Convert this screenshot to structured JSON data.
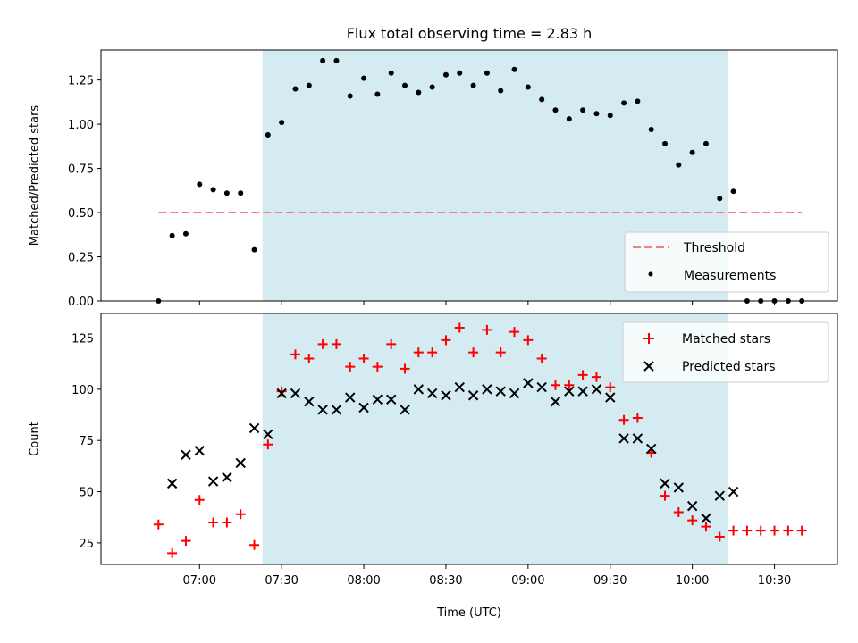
{
  "chart_data": [
    {
      "type": "scatter",
      "title": "Flux total observing time = 2.83 h",
      "ylabel": "Matched/Predicted stars",
      "xlabel": "",
      "ylim": [
        0,
        1.42
      ],
      "xlim": [
        "06:24",
        "10:53"
      ],
      "yticks": [
        0.0,
        0.25,
        0.5,
        0.75,
        1.0,
        1.25
      ],
      "ytick_labels": [
        "0.00",
        "0.25",
        "0.50",
        "0.75",
        "1.00",
        "1.25"
      ],
      "xtick_labels_shown": false,
      "shaded_interval": [
        "07:23",
        "10:13"
      ],
      "shade_color": "#d3ebf1",
      "threshold": {
        "name": "Threshold",
        "value": 0.5,
        "x_range": [
          "06:45",
          "10:40"
        ],
        "color": "#f4817f",
        "style": "dashed"
      },
      "legend_position": "lower-right",
      "series": [
        {
          "name": "Measurements",
          "marker": "dot",
          "color": "#000000",
          "x": [
            "06:45",
            "06:50",
            "06:55",
            "07:00",
            "07:05",
            "07:10",
            "07:15",
            "07:20",
            "07:25",
            "07:30",
            "07:35",
            "07:40",
            "07:45",
            "07:50",
            "07:55",
            "08:00",
            "08:05",
            "08:10",
            "08:15",
            "08:20",
            "08:25",
            "08:30",
            "08:35",
            "08:40",
            "08:45",
            "08:50",
            "08:55",
            "09:00",
            "09:05",
            "09:10",
            "09:15",
            "09:20",
            "09:25",
            "09:30",
            "09:35",
            "09:40",
            "09:45",
            "09:50",
            "09:55",
            "10:00",
            "10:05",
            "10:10",
            "10:15",
            "10:20",
            "10:25",
            "10:30",
            "10:35",
            "10:40"
          ],
          "y": [
            0.0,
            0.37,
            0.38,
            0.66,
            0.63,
            0.61,
            0.61,
            0.29,
            0.94,
            1.01,
            1.2,
            1.22,
            1.36,
            1.36,
            1.16,
            1.26,
            1.17,
            1.29,
            1.22,
            1.18,
            1.21,
            1.28,
            1.29,
            1.22,
            1.29,
            1.19,
            1.31,
            1.21,
            1.14,
            1.08,
            1.03,
            1.08,
            1.06,
            1.05,
            1.12,
            1.13,
            0.97,
            0.89,
            0.77,
            0.84,
            0.89,
            0.58,
            0.62,
            0.0,
            0.0,
            0.0,
            0.0,
            0.0
          ]
        }
      ]
    },
    {
      "type": "scatter",
      "title": "",
      "ylabel": "Count",
      "xlabel": "Time (UTC)",
      "ylim": [
        14.5,
        137
      ],
      "xlim": [
        "06:24",
        "10:53"
      ],
      "yticks": [
        25,
        50,
        75,
        100,
        125
      ],
      "ytick_labels": [
        "25",
        "50",
        "75",
        "100",
        "125"
      ],
      "xticks": [
        "07:00",
        "07:30",
        "08:00",
        "08:30",
        "09:00",
        "09:30",
        "10:00",
        "10:30"
      ],
      "xtick_labels": [
        "07:00",
        "07:30",
        "08:00",
        "08:30",
        "09:00",
        "09:30",
        "10:00",
        "10:30"
      ],
      "shaded_interval": [
        "07:23",
        "10:13"
      ],
      "shade_color": "#d3ebf1",
      "legend_position": "upper-right",
      "series": [
        {
          "name": "Matched stars",
          "marker": "plus",
          "color": "#ff0000",
          "x": [
            "06:45",
            "06:50",
            "06:55",
            "07:00",
            "07:05",
            "07:10",
            "07:15",
            "07:20",
            "07:25",
            "07:30",
            "07:35",
            "07:40",
            "07:45",
            "07:50",
            "07:55",
            "08:00",
            "08:05",
            "08:10",
            "08:15",
            "08:20",
            "08:25",
            "08:30",
            "08:35",
            "08:40",
            "08:45",
            "08:50",
            "08:55",
            "09:00",
            "09:05",
            "09:10",
            "09:15",
            "09:20",
            "09:25",
            "09:30",
            "09:35",
            "09:40",
            "09:45",
            "09:50",
            "09:55",
            "10:00",
            "10:05",
            "10:10",
            "10:15",
            "10:20",
            "10:25",
            "10:30",
            "10:35",
            "10:40"
          ],
          "y": [
            34,
            20,
            26,
            46,
            35,
            35,
            39,
            24,
            73,
            99,
            117,
            115,
            122,
            122,
            111,
            115,
            111,
            122,
            110,
            118,
            118,
            124,
            130,
            118,
            129,
            118,
            128,
            124,
            115,
            102,
            102,
            107,
            106,
            101,
            85,
            86,
            69,
            48,
            40,
            36,
            33,
            28,
            31,
            31,
            31,
            31,
            31,
            31
          ]
        },
        {
          "name": "Predicted stars",
          "marker": "x",
          "color": "#000000",
          "x": [
            "06:50",
            "06:55",
            "07:00",
            "07:05",
            "07:10",
            "07:15",
            "07:20",
            "07:25",
            "07:30",
            "07:35",
            "07:40",
            "07:45",
            "07:50",
            "07:55",
            "08:00",
            "08:05",
            "08:10",
            "08:15",
            "08:20",
            "08:25",
            "08:30",
            "08:35",
            "08:40",
            "08:45",
            "08:50",
            "08:55",
            "09:00",
            "09:05",
            "09:10",
            "09:15",
            "09:20",
            "09:25",
            "09:30",
            "09:35",
            "09:40",
            "09:45",
            "09:50",
            "09:55",
            "10:00",
            "10:05",
            "10:10",
            "10:15"
          ],
          "y": [
            54,
            68,
            70,
            55,
            57,
            64,
            81,
            78,
            98,
            98,
            94,
            90,
            90,
            96,
            91,
            95,
            95,
            90,
            100,
            98,
            97,
            101,
            97,
            100,
            99,
            98,
            103,
            101,
            94,
            99,
            99,
            100,
            96,
            76,
            76,
            71,
            54,
            52,
            43,
            37,
            48,
            50
          ]
        }
      ]
    }
  ]
}
